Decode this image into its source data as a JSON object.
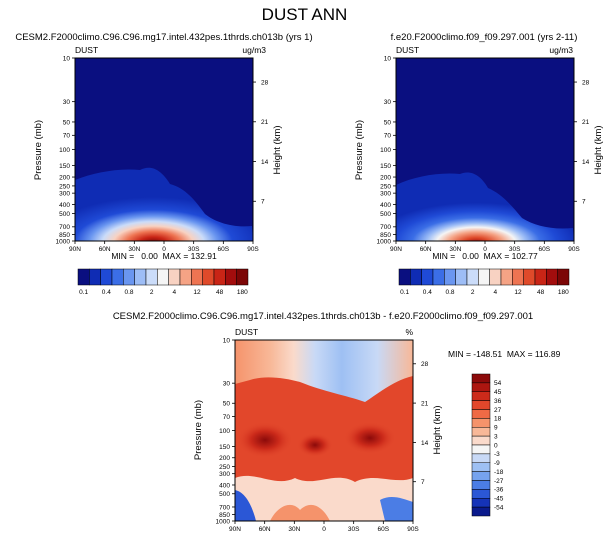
{
  "figure_title": "DUST ANN",
  "chart_data": [
    {
      "type": "heatmap",
      "title": "CESM2.F2000climo.C96.C96.mg17.intel.432pes.1thrds.ch013b (yrs 1)",
      "variable_label": "DUST",
      "units": "ug/m3",
      "xlabel": "",
      "ylabel": "Pressure (mb)",
      "y2label": "Height (km)",
      "x_ticks": [
        "90N",
        "60N",
        "30N",
        "0",
        "30S",
        "60S",
        "90S"
      ],
      "y_ticks": [
        10,
        30,
        50,
        70,
        100,
        150,
        200,
        250,
        300,
        400,
        500,
        700,
        850,
        1000
      ],
      "y_scale": "log",
      "ylim": [
        1000,
        10
      ],
      "y2_ticks": [
        28,
        21,
        14,
        7
      ],
      "stats": "MIN =   0.00  MAX = 132.91",
      "min": 0.0,
      "max": 132.91,
      "legend_placement": "bottom"
    },
    {
      "type": "heatmap",
      "title": "f.e20.F2000climo.f09_f09.297.001 (yrs 2-11)",
      "variable_label": "DUST",
      "units": "ug/m3",
      "xlabel": "",
      "ylabel": "Pressure (mb)",
      "y2label": "Height (km)",
      "x_ticks": [
        "90N",
        "60N",
        "30N",
        "0",
        "30S",
        "60S",
        "90S"
      ],
      "y_ticks": [
        10,
        30,
        50,
        70,
        100,
        150,
        200,
        250,
        300,
        400,
        500,
        700,
        850,
        1000
      ],
      "y_scale": "log",
      "ylim": [
        1000,
        10
      ],
      "y2_ticks": [
        28,
        21,
        14,
        7
      ],
      "stats": "MIN =   0.00  MAX = 102.77",
      "min": 0.0,
      "max": 102.77,
      "legend_placement": "bottom"
    },
    {
      "type": "heatmap",
      "title": "CESM2.F2000climo.C96.C96.mg17.intel.432pes.1thrds.ch013b - f.e20.F2000climo.f09_f09.297.001",
      "variable_label": "DUST",
      "units": "%",
      "xlabel": "",
      "ylabel": "Pressure (mb)",
      "y2label": "Height (km)",
      "x_ticks": [
        "90N",
        "60N",
        "30N",
        "0",
        "30S",
        "60S",
        "90S"
      ],
      "y_ticks": [
        10,
        30,
        50,
        70,
        100,
        150,
        200,
        250,
        300,
        400,
        500,
        700,
        850,
        1000
      ],
      "y_scale": "log",
      "ylim": [
        1000,
        10
      ],
      "y2_ticks": [
        28,
        21,
        14,
        7
      ],
      "stats": "MIN = -148.51  MAX = 116.89",
      "min": -148.51,
      "max": 116.89,
      "legend_placement": "right"
    }
  ],
  "colorbar_abs": {
    "labels": [
      "0.1",
      "0.4",
      "0.8",
      "2",
      "4",
      "12",
      "48",
      "180"
    ],
    "colors": [
      "#0a0f80",
      "#0f2cb4",
      "#1f4ad6",
      "#3b6ee6",
      "#6a96f0",
      "#9dbdf6",
      "#cbdcf9",
      "#f5f5f5",
      "#f8d2c2",
      "#f5a385",
      "#ee7452",
      "#df4a2a",
      "#c92516",
      "#a30d0d",
      "#7c0606"
    ]
  },
  "colorbar_diff": {
    "labels": [
      "54",
      "45",
      "36",
      "27",
      "18",
      "9",
      "3",
      "0",
      "-3",
      "-9",
      "-18",
      "-27",
      "-36",
      "-45",
      "-54"
    ],
    "colors": [
      "#8c0a0a",
      "#ad1610",
      "#cc2a1a",
      "#e2472b",
      "#ef6a45",
      "#f5936b",
      "#f8b898",
      "#fadacb",
      "#f5f5f5",
      "#c8d9f6",
      "#9ec0f3",
      "#76a3ee",
      "#4b7de5",
      "#2b57d6",
      "#1533b8",
      "#0a1a8c"
    ]
  }
}
